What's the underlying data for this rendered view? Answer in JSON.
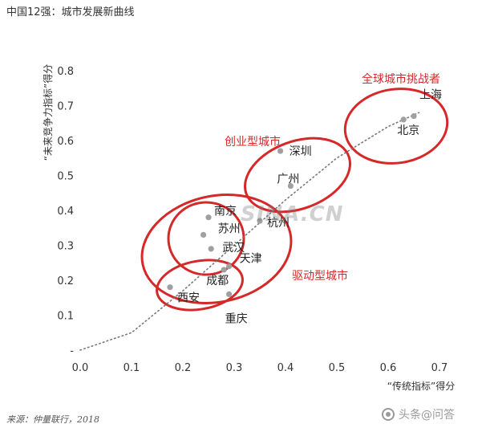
{
  "title": "中国12强：城市发展新曲线",
  "source": "来源：仲量联行，2018",
  "watermark": "头条@问答",
  "embedded_watermark": "SINA.CN",
  "colors": {
    "points": "#a0a0a0",
    "ellipse": "#d62828",
    "group_label": "#d62828",
    "trend": "#777777",
    "axis": "#333333"
  },
  "chart_data": {
    "type": "scatter",
    "xlabel": "“传统指标”得分",
    "ylabel": "“未来竞争力指标”得分",
    "xlim": [
      0.0,
      0.7
    ],
    "ylim": [
      0.0,
      0.8
    ],
    "xticks": [
      "0.0",
      "0.1",
      "0.2",
      "0.3",
      "0.4",
      "0.5",
      "0.6",
      "0.7"
    ],
    "yticks": [
      "-",
      "0.1",
      "0.2",
      "0.3",
      "0.4",
      "0.5",
      "0.6",
      "0.7",
      "0.8"
    ],
    "grid": false,
    "points": [
      {
        "name": "上海",
        "x": 0.65,
        "y": 0.67
      },
      {
        "name": "北京",
        "x": 0.63,
        "y": 0.66
      },
      {
        "name": "深圳",
        "x": 0.39,
        "y": 0.57
      },
      {
        "name": "广州",
        "x": 0.41,
        "y": 0.47
      },
      {
        "name": "杭州",
        "x": 0.35,
        "y": 0.37
      },
      {
        "name": "南京",
        "x": 0.25,
        "y": 0.38
      },
      {
        "name": "苏州",
        "x": 0.24,
        "y": 0.33
      },
      {
        "name": "武汉",
        "x": 0.255,
        "y": 0.29
      },
      {
        "name": "天津",
        "x": 0.29,
        "y": 0.24
      },
      {
        "name": "成都",
        "x": 0.28,
        "y": 0.23
      },
      {
        "name": "西安",
        "x": 0.175,
        "y": 0.18
      },
      {
        "name": "重庆",
        "x": 0.29,
        "y": 0.16
      }
    ],
    "groups": [
      {
        "label": "全球城市挑战者",
        "members": [
          "上海",
          "北京"
        ]
      },
      {
        "label": "创业型城市",
        "members": [
          "深圳",
          "广州"
        ]
      },
      {
        "label": "驱动型城市",
        "members": [
          "杭州",
          "南京",
          "苏州",
          "武汉",
          "天津",
          "成都",
          "西安",
          "重庆"
        ]
      }
    ],
    "trend_line": {
      "style": "dotted",
      "x": [
        0.0,
        0.1,
        0.2,
        0.3,
        0.4,
        0.5,
        0.6,
        0.66
      ],
      "y": [
        0.0,
        0.05,
        0.17,
        0.3,
        0.43,
        0.55,
        0.64,
        0.68
      ]
    }
  }
}
